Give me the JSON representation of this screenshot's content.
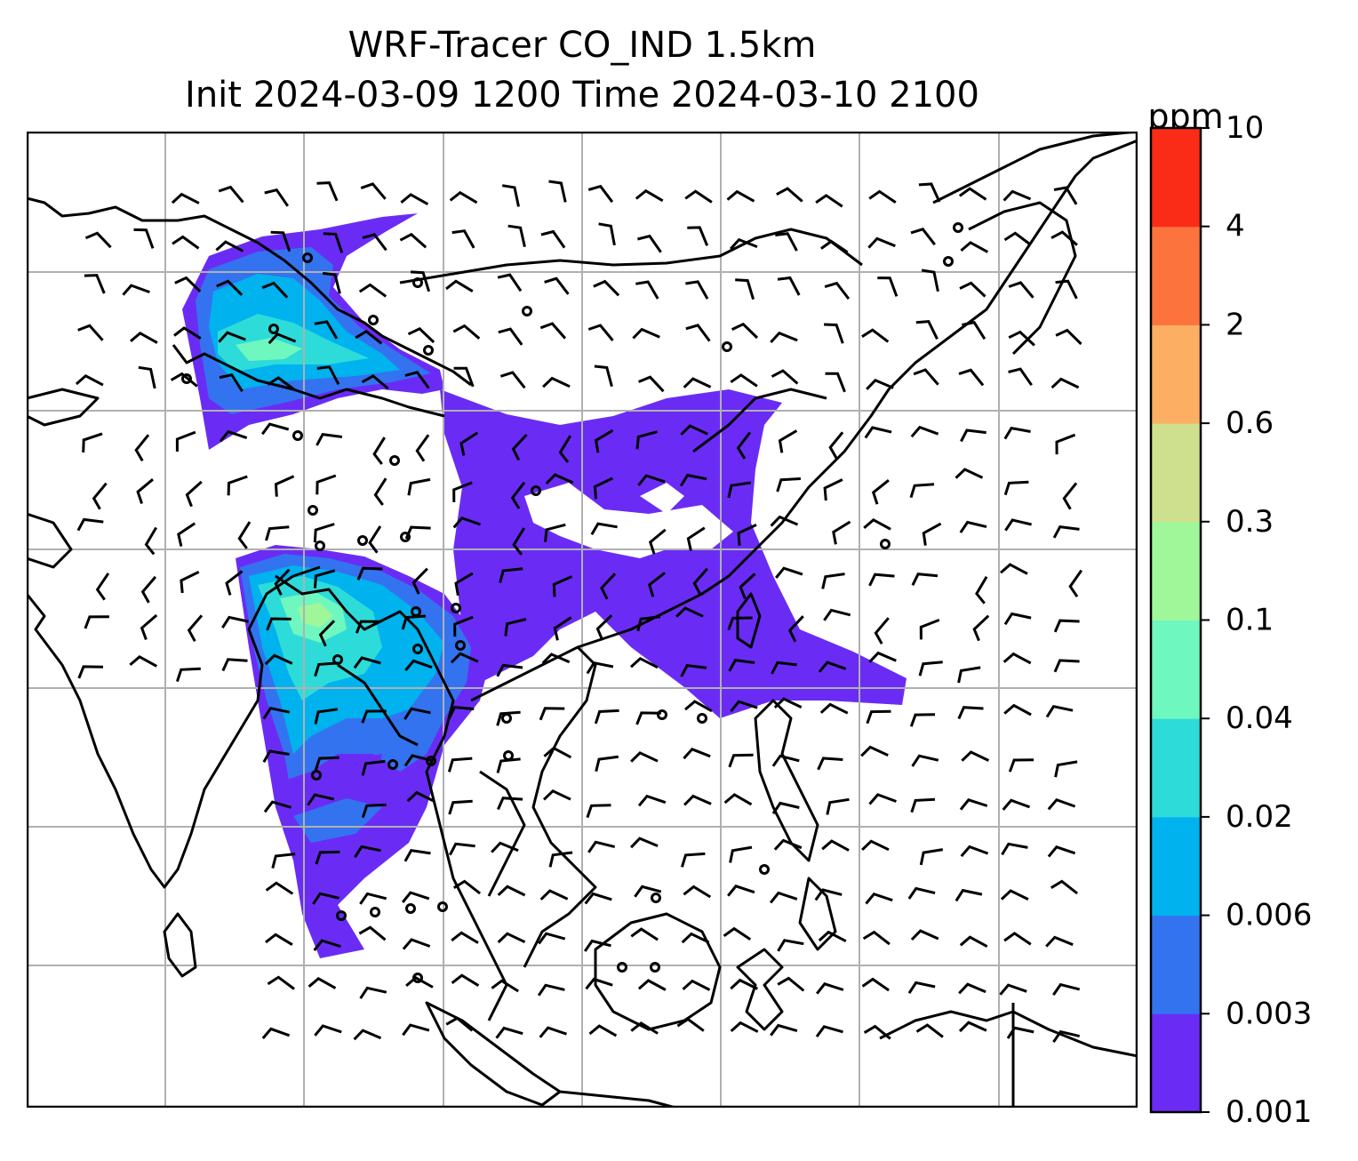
{
  "title": {
    "line1": "WRF-Tracer CO_IND 1.5km",
    "line2": "Init 2024-03-09 1200 Time 2024-03-10 2100"
  },
  "colorbar": {
    "unit": "ppm",
    "levels": [
      "0.001",
      "0.003",
      "0.006",
      "0.02",
      "0.04",
      "0.1",
      "0.3",
      "0.6",
      "2",
      "4",
      "10"
    ],
    "colors": [
      "#6a2cf5",
      "#3373f0",
      "#00b2ee",
      "#2ddcd9",
      "#6ff7c0",
      "#9ff79a",
      "#cee08e",
      "#fcaf62",
      "#fc733d",
      "#fb2c17"
    ]
  },
  "map": {
    "tracer_color_scale": [
      "#6a2cf5",
      "#3373f0",
      "#00b2ee",
      "#2ddcd9",
      "#6ff7c0",
      "#9ff79a"
    ],
    "coastline_color": "#000000",
    "gridline_color": "#b0b0b0",
    "wind_barb_color": "#000000"
  }
}
